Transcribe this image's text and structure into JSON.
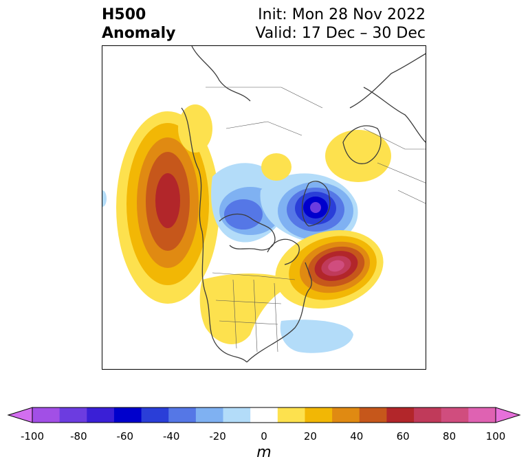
{
  "title": {
    "left_line1": "H500",
    "left_line2": "Anomaly",
    "right_line1": "Init: Mon 28 Nov 2022",
    "right_line2": "Valid: 17 Dec – 30 Dec"
  },
  "colorbar": {
    "unit": "m",
    "ticks": [
      "-100",
      "-80",
      "-60",
      "-40",
      "-20",
      "0",
      "20",
      "40",
      "60",
      "80",
      "100"
    ],
    "colors": [
      "#d36ef0",
      "#a24fe6",
      "#6c3ce0",
      "#3a1fd6",
      "#0000cc",
      "#2a3ed8",
      "#5577e6",
      "#7fb1f2",
      "#b3dcf9",
      "#ffffff",
      "#fde14e",
      "#f2b705",
      "#e08a12",
      "#c6571b",
      "#b2262a",
      "#c03a5a",
      "#d04d7e",
      "#df62b2",
      "#e670da"
    ]
  },
  "map": {
    "region": "North America / North Pole",
    "features": [
      {
        "label": "positive-anomaly-pacific-west-coast",
        "max_m": 55
      },
      {
        "label": "positive-anomaly-north-atlantic",
        "max_m": 80
      },
      {
        "label": "negative-anomaly-greenland-arctic",
        "min_m": -65
      },
      {
        "label": "negative-anomaly-hudson-arctic-canada",
        "min_m": -35
      },
      {
        "label": "positive-anomaly-scandinavia",
        "max_m": 15
      },
      {
        "label": "positive-anomaly-western-us",
        "max_m": 15
      },
      {
        "label": "negative-anomaly-southeast-us",
        "min_m": -15
      }
    ]
  }
}
